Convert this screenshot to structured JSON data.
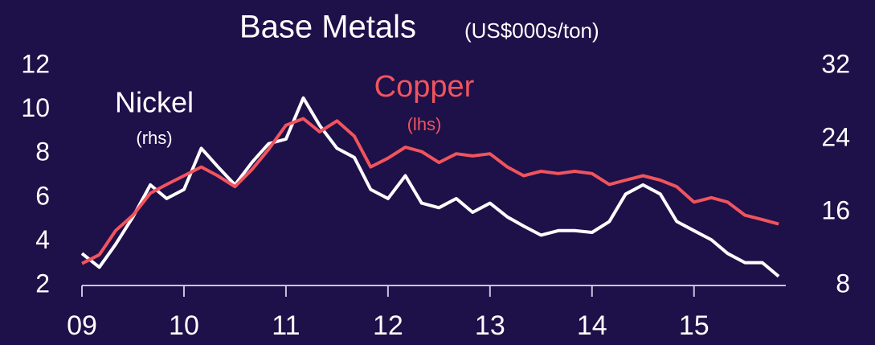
{
  "chart_data": {
    "type": "line",
    "title": "Base Metals",
    "subtitle": "(US$000s/ton)",
    "annotations": [
      "Nickel",
      "(rhs)",
      "Copper",
      "(lhs)"
    ],
    "x": [
      2009,
      2009.17,
      2009.33,
      2009.5,
      2009.67,
      2009.83,
      2010,
      2010.17,
      2010.33,
      2010.5,
      2010.67,
      2010.83,
      2011,
      2011.17,
      2011.33,
      2011.5,
      2011.67,
      2011.83,
      2012,
      2012.17,
      2012.33,
      2012.5,
      2012.67,
      2012.83,
      2013,
      2013.17,
      2013.33,
      2013.5,
      2013.67,
      2013.83,
      2014,
      2014.17,
      2014.33,
      2014.5,
      2014.67,
      2014.83,
      2015,
      2015.17,
      2015.33,
      2015.5,
      2015.67,
      2015.83
    ],
    "series": [
      {
        "name": "Copper",
        "color": "#f0545e",
        "axis": "y",
        "values": [
          3.0,
          3.4,
          4.5,
          5.2,
          6.2,
          6.6,
          7.0,
          7.4,
          7.0,
          6.5,
          7.3,
          8.2,
          9.3,
          9.6,
          9.0,
          9.5,
          8.8,
          7.4,
          7.8,
          8.3,
          8.1,
          7.6,
          8.0,
          7.9,
          8.0,
          7.4,
          7.0,
          7.2,
          7.1,
          7.2,
          7.1,
          6.6,
          6.8,
          7.0,
          6.8,
          6.5,
          5.8,
          6.0,
          5.8,
          5.2,
          5.0,
          4.8
        ]
      },
      {
        "name": "Nickel",
        "color": "#ffffff",
        "axis": "y2",
        "values": [
          11.5,
          10.0,
          12.5,
          15.5,
          19.0,
          17.5,
          18.5,
          23.0,
          21.0,
          19.0,
          21.5,
          23.5,
          24.0,
          28.5,
          25.5,
          23.0,
          22.0,
          18.5,
          17.5,
          20.0,
          17.0,
          16.5,
          17.5,
          16.0,
          17.0,
          15.5,
          14.5,
          13.5,
          14.0,
          14.0,
          13.8,
          15.0,
          18.0,
          19.0,
          18.0,
          15.0,
          14.0,
          13.0,
          11.5,
          10.5,
          10.5,
          9.0
        ]
      }
    ],
    "xlim": [
      2009,
      2015.9
    ],
    "xticks": [
      {
        "value": 2009,
        "label": "09"
      },
      {
        "value": 2010,
        "label": "10"
      },
      {
        "value": 2011,
        "label": "11"
      },
      {
        "value": 2012,
        "label": "12"
      },
      {
        "value": 2013,
        "label": "13"
      },
      {
        "value": 2014,
        "label": "14"
      },
      {
        "value": 2015,
        "label": "15"
      }
    ],
    "ylim": [
      2,
      12
    ],
    "yticks": [
      2,
      4,
      6,
      8,
      10,
      12
    ],
    "y2lim": [
      8,
      32
    ],
    "y2ticks": [
      8,
      16,
      24,
      32
    ],
    "grid": false
  }
}
